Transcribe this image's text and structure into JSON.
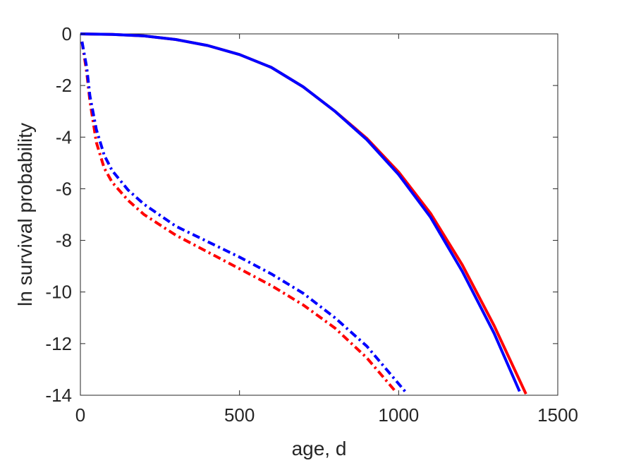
{
  "chart_data": {
    "type": "line",
    "title": "",
    "xlabel": "age, d",
    "ylabel": "ln survival probability",
    "xlim": [
      0,
      1500
    ],
    "ylim": [
      -14,
      0
    ],
    "xticks": [
      0,
      500,
      1000,
      1500
    ],
    "yticks": [
      0,
      -2,
      -4,
      -6,
      -8,
      -10,
      -12,
      -14
    ],
    "xtick_labels": [
      "0",
      "500",
      "1000",
      "1500"
    ],
    "ytick_labels": [
      "0",
      "-2",
      "-4",
      "-6",
      "-8",
      "-10",
      "-12",
      "-14"
    ],
    "grid": false,
    "legend": "none",
    "series": [
      {
        "color": "#ff0000",
        "style": "solid",
        "x": [
          0,
          100,
          200,
          300,
          400,
          500,
          600,
          700,
          800,
          900,
          1000,
          1100,
          1200,
          1300,
          1400
        ],
        "y": [
          0,
          -0.02,
          -0.08,
          -0.22,
          -0.45,
          -0.8,
          -1.3,
          -2.05,
          -3.0,
          -4.05,
          -5.35,
          -6.95,
          -8.95,
          -11.3,
          -13.95
        ]
      },
      {
        "color": "#0000ff",
        "style": "solid",
        "x": [
          0,
          100,
          200,
          300,
          400,
          500,
          600,
          700,
          800,
          900,
          1000,
          1100,
          1200,
          1300,
          1380
        ],
        "y": [
          0,
          -0.02,
          -0.08,
          -0.22,
          -0.45,
          -0.8,
          -1.3,
          -2.05,
          -3.0,
          -4.1,
          -5.45,
          -7.1,
          -9.2,
          -11.6,
          -13.85
        ]
      },
      {
        "color": "#ff0000",
        "style": "dashdot",
        "x": [
          5,
          20,
          30,
          50,
          75,
          100,
          150,
          200,
          300,
          400,
          500,
          600,
          700,
          800,
          900,
          990
        ],
        "y": [
          -0.3,
          -1.5,
          -2.6,
          -4.2,
          -5.2,
          -5.75,
          -6.45,
          -7.0,
          -7.8,
          -8.45,
          -9.1,
          -9.75,
          -10.5,
          -11.4,
          -12.55,
          -13.85
        ]
      },
      {
        "color": "#0000ff",
        "style": "dashdot",
        "x": [
          5,
          20,
          30,
          50,
          75,
          100,
          150,
          200,
          300,
          400,
          500,
          600,
          700,
          800,
          900,
          1020
        ],
        "y": [
          -0.3,
          -1.3,
          -2.4,
          -3.7,
          -4.7,
          -5.3,
          -6.05,
          -6.6,
          -7.45,
          -8.05,
          -8.65,
          -9.3,
          -10.05,
          -11.0,
          -12.1,
          -13.85
        ]
      }
    ]
  }
}
